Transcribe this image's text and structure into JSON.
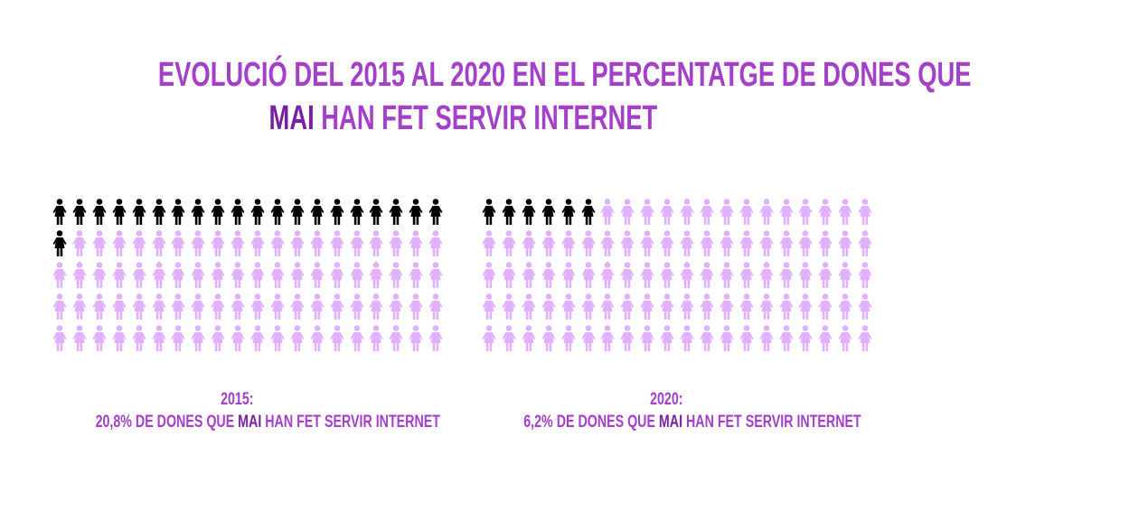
{
  "title": {
    "line1": "EVOLUCIÓ DEL 2015 AL 2020 EN EL PERCENTATGE DE DONES QUE",
    "line2_bold": "MAI",
    "line2_rest": " HAN FET SERVIR INTERNET"
  },
  "colors": {
    "title": "#a43fc9",
    "highlight": "#000000",
    "rest": "#e0b0ff"
  },
  "chart_data": [
    {
      "type": "pictogram",
      "year_label": "2015:",
      "value_text": "20,8%",
      "caption_pre": " DE DONES QUE ",
      "caption_bold": "MAI",
      "caption_post": " HAN FET SERVIR INTERNET",
      "total_icons": 100,
      "highlighted_icons": 21,
      "columns": 20,
      "rows": 5,
      "percent": 20.8
    },
    {
      "type": "pictogram",
      "year_label": "2020:",
      "value_text": "6,2%",
      "caption_pre": " DE DONES QUE ",
      "caption_bold": "MAI",
      "caption_post": " HAN FET SERVIR INTERNET",
      "total_icons": 100,
      "highlighted_icons": 6,
      "columns": 20,
      "rows": 5,
      "percent": 6.2
    }
  ]
}
